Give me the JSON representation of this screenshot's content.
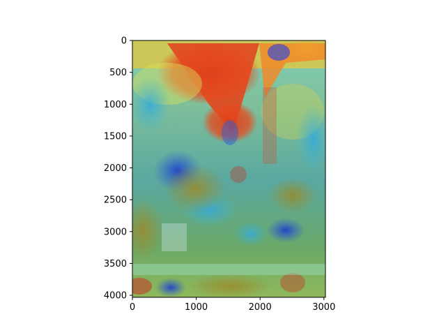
{
  "chart_data": {
    "type": "heatmap",
    "title": "",
    "xlabel": "",
    "ylabel": "",
    "xlim": [
      0,
      3024
    ],
    "ylim": [
      4032,
      0
    ],
    "x_ticks": [
      0,
      1000,
      2000,
      3000
    ],
    "y_ticks": [
      0,
      500,
      1000,
      1500,
      2000,
      2500,
      3000,
      3500,
      4000
    ],
    "x_tick_labels": [
      "0",
      "1000",
      "2000",
      "3000"
    ],
    "y_tick_labels": [
      "0",
      "500",
      "1000",
      "1500",
      "2000",
      "2500",
      "3000",
      "3500",
      "4000"
    ],
    "colormap": "jet",
    "grid": false,
    "legend": "none",
    "overlay": "attention heatmap over street photo",
    "hot_regions": [
      {
        "x": 1300,
        "y": 700,
        "level": "high"
      },
      {
        "x": 400,
        "y": 2200,
        "level": "medium"
      },
      {
        "x": 2200,
        "y": 3100,
        "level": "low"
      }
    ]
  },
  "colors": {
    "red": "#e64a1e",
    "orange": "#f0a12a",
    "yellow": "#e6d84a",
    "green": "#8fbf5a",
    "cyan": "#3fb6d6",
    "blue": "#2a5bd7",
    "darkblue": "#1a2a9a"
  }
}
